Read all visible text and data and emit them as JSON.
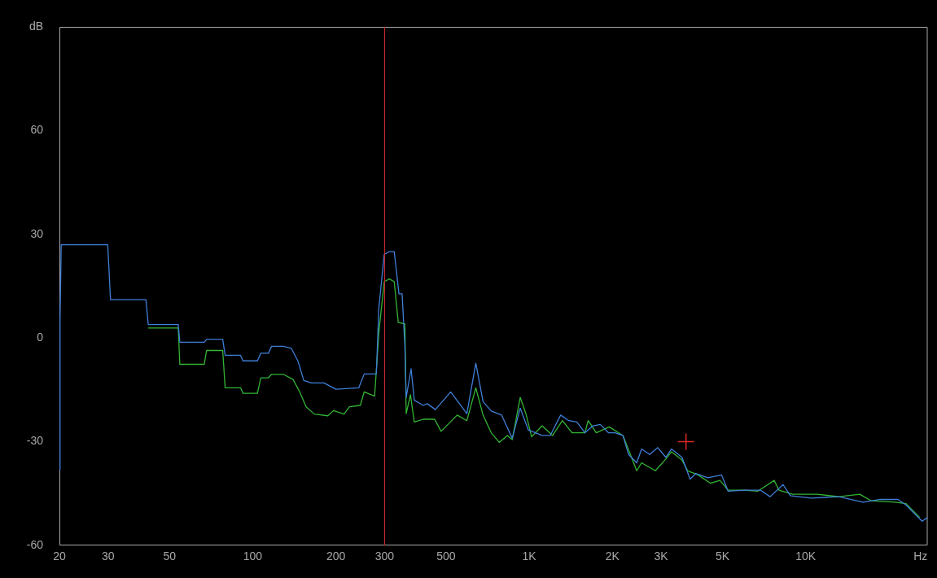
{
  "chart_data": {
    "type": "line",
    "xlabel": null,
    "log": "x",
    "xlim": [
      20,
      27600
    ],
    "ylim": [
      -60,
      90
    ],
    "xticks": [
      20,
      30,
      50,
      100,
      200,
      300,
      500,
      {
        "value": 1000,
        "label": "1K"
      },
      {
        "value": 2000,
        "label": "2K"
      },
      {
        "value": 3000,
        "label": "3K"
      },
      {
        "value": 5000,
        "label": "5K"
      },
      {
        "value": 10000,
        "label": "10K"
      },
      {
        "value": 26000,
        "label": "Hz"
      }
    ],
    "yticks": [
      -60,
      -30,
      0,
      30,
      60,
      {
        "value": 90,
        "label": "dB"
      }
    ],
    "grid": false,
    "legend": false,
    "marker": "none",
    "line_style": "solid",
    "ref_lines": [
      {
        "axis": "x",
        "value": 300,
        "color": "#c82828"
      }
    ],
    "series": [
      {
        "color": "#33b534",
        "x": [
          41.9,
          53.8,
          54.5,
          66.8,
          68.1,
          77.9,
          79.5,
          90.4,
          92.2,
          104,
          107,
          114,
          117,
          129,
          140,
          148,
          156,
          167,
          187,
          196,
          214,
          224,
          245,
          253,
          276,
          286,
          299,
          312,
          325,
          336,
          355,
          359,
          372,
          384,
          414,
          455,
          480,
          549,
          595,
          641,
          681,
          729,
          779,
          834,
          868,
          928,
          973,
          1020,
          1113,
          1215,
          1318,
          1429,
          1591,
          1634,
          1748,
          1947,
          2183,
          2448,
          2549,
          2858,
          3120,
          3270,
          3568,
          3742,
          4084,
          4518,
          4898,
          5238,
          5994,
          6720,
          7688,
          8004,
          8974,
          10988,
          13172,
          15696,
          17250,
          21108,
          23040,
          25830
        ],
        "values": [
          2.9,
          2.9,
          -7.6,
          -7.6,
          -3.6,
          -3.6,
          -14.4,
          -14.4,
          -16,
          -16,
          -11.5,
          -11.5,
          -10.5,
          -10.5,
          -12,
          -15.6,
          -19.9,
          -22,
          -22.5,
          -21,
          -22,
          -19.9,
          -19.5,
          -15.6,
          -16.8,
          1.7,
          16.3,
          17.1,
          16.3,
          4.5,
          4.1,
          -21.9,
          -16.4,
          -24.3,
          -23.5,
          -23.5,
          -27,
          -22.3,
          -23.9,
          -14.4,
          -22.3,
          -27.4,
          -30.2,
          -28.2,
          -29.4,
          -17.2,
          -21.9,
          -28.6,
          -25.4,
          -28.2,
          -23.9,
          -27.4,
          -27.4,
          -23.9,
          -27.4,
          -25.7,
          -28.2,
          -38.4,
          -36.1,
          -38.4,
          -35,
          -32.9,
          -35.3,
          -38.4,
          -39.6,
          -42,
          -41.2,
          -44,
          -44,
          -44.3,
          -41.2,
          -44,
          -45.2,
          -45.2,
          -45.9,
          -45.2,
          -47.1,
          -47.5,
          -47.9,
          -51.9
        ]
      },
      {
        "color": "#3f7fd8",
        "x": [
          20,
          20.1,
          20.3,
          29.9,
          30.6,
          41.1,
          41.9,
          53.8,
          54.5,
          66.8,
          68.1,
          77.9,
          79.5,
          90.4,
          92.2,
          104,
          107,
          114,
          117,
          129,
          138,
          146,
          153,
          163,
          181,
          200,
          242,
          253,
          280,
          286,
          299,
          312,
          325,
          338,
          347,
          355,
          359,
          374,
          384,
          414,
          428,
          458,
          520,
          595,
          641,
          681,
          729,
          795,
          868,
          928,
          993,
          1113,
          1191,
          1300,
          1391,
          1487,
          1591,
          1701,
          1808,
          1934,
          2040,
          2183,
          2288,
          2448,
          2549,
          2726,
          2916,
          3120,
          3270,
          3568,
          3818,
          4003,
          4426,
          4964,
          5238,
          5994,
          6858,
          7434,
          8280,
          8796,
          10482,
          13172,
          16124,
          18448,
          21540,
          23040,
          26360,
          27600
        ],
        "values": [
          -38,
          5,
          27,
          27,
          11.1,
          11.1,
          3.9,
          3.9,
          -1.2,
          -1.2,
          -0.4,
          -0.4,
          -5,
          -5,
          -6.6,
          -6.6,
          -4.4,
          -4.4,
          -2.4,
          -2.4,
          -3,
          -6.8,
          -12.3,
          -13,
          -13,
          -14.8,
          -14.4,
          -10.4,
          -10.4,
          8.8,
          24.2,
          25,
          25,
          12.8,
          12.8,
          -2.2,
          -17.2,
          -8.9,
          -18,
          -19.5,
          -19,
          -20.7,
          -15.6,
          -21.9,
          -7.3,
          -18.4,
          -21.1,
          -22.3,
          -29,
          -20.3,
          -26.6,
          -28.2,
          -28.2,
          -22.3,
          -23.9,
          -24.3,
          -27.4,
          -25.4,
          -25,
          -27.4,
          -27.4,
          -28.2,
          -33.7,
          -36.1,
          -32.1,
          -33.7,
          -31.7,
          -34.5,
          -32.1,
          -34.5,
          -40.8,
          -39.2,
          -40.4,
          -39.6,
          -44.3,
          -44,
          -44,
          -45.9,
          -42.4,
          -45.6,
          -46.3,
          -45.9,
          -47.5,
          -46.7,
          -46.7,
          -48.3,
          -53,
          -51.9
        ]
      },
      {
        "type": "scatter",
        "color": "#e02828",
        "marker": "cross",
        "x": [
          3690
        ],
        "values": [
          -30
        ]
      }
    ]
  }
}
